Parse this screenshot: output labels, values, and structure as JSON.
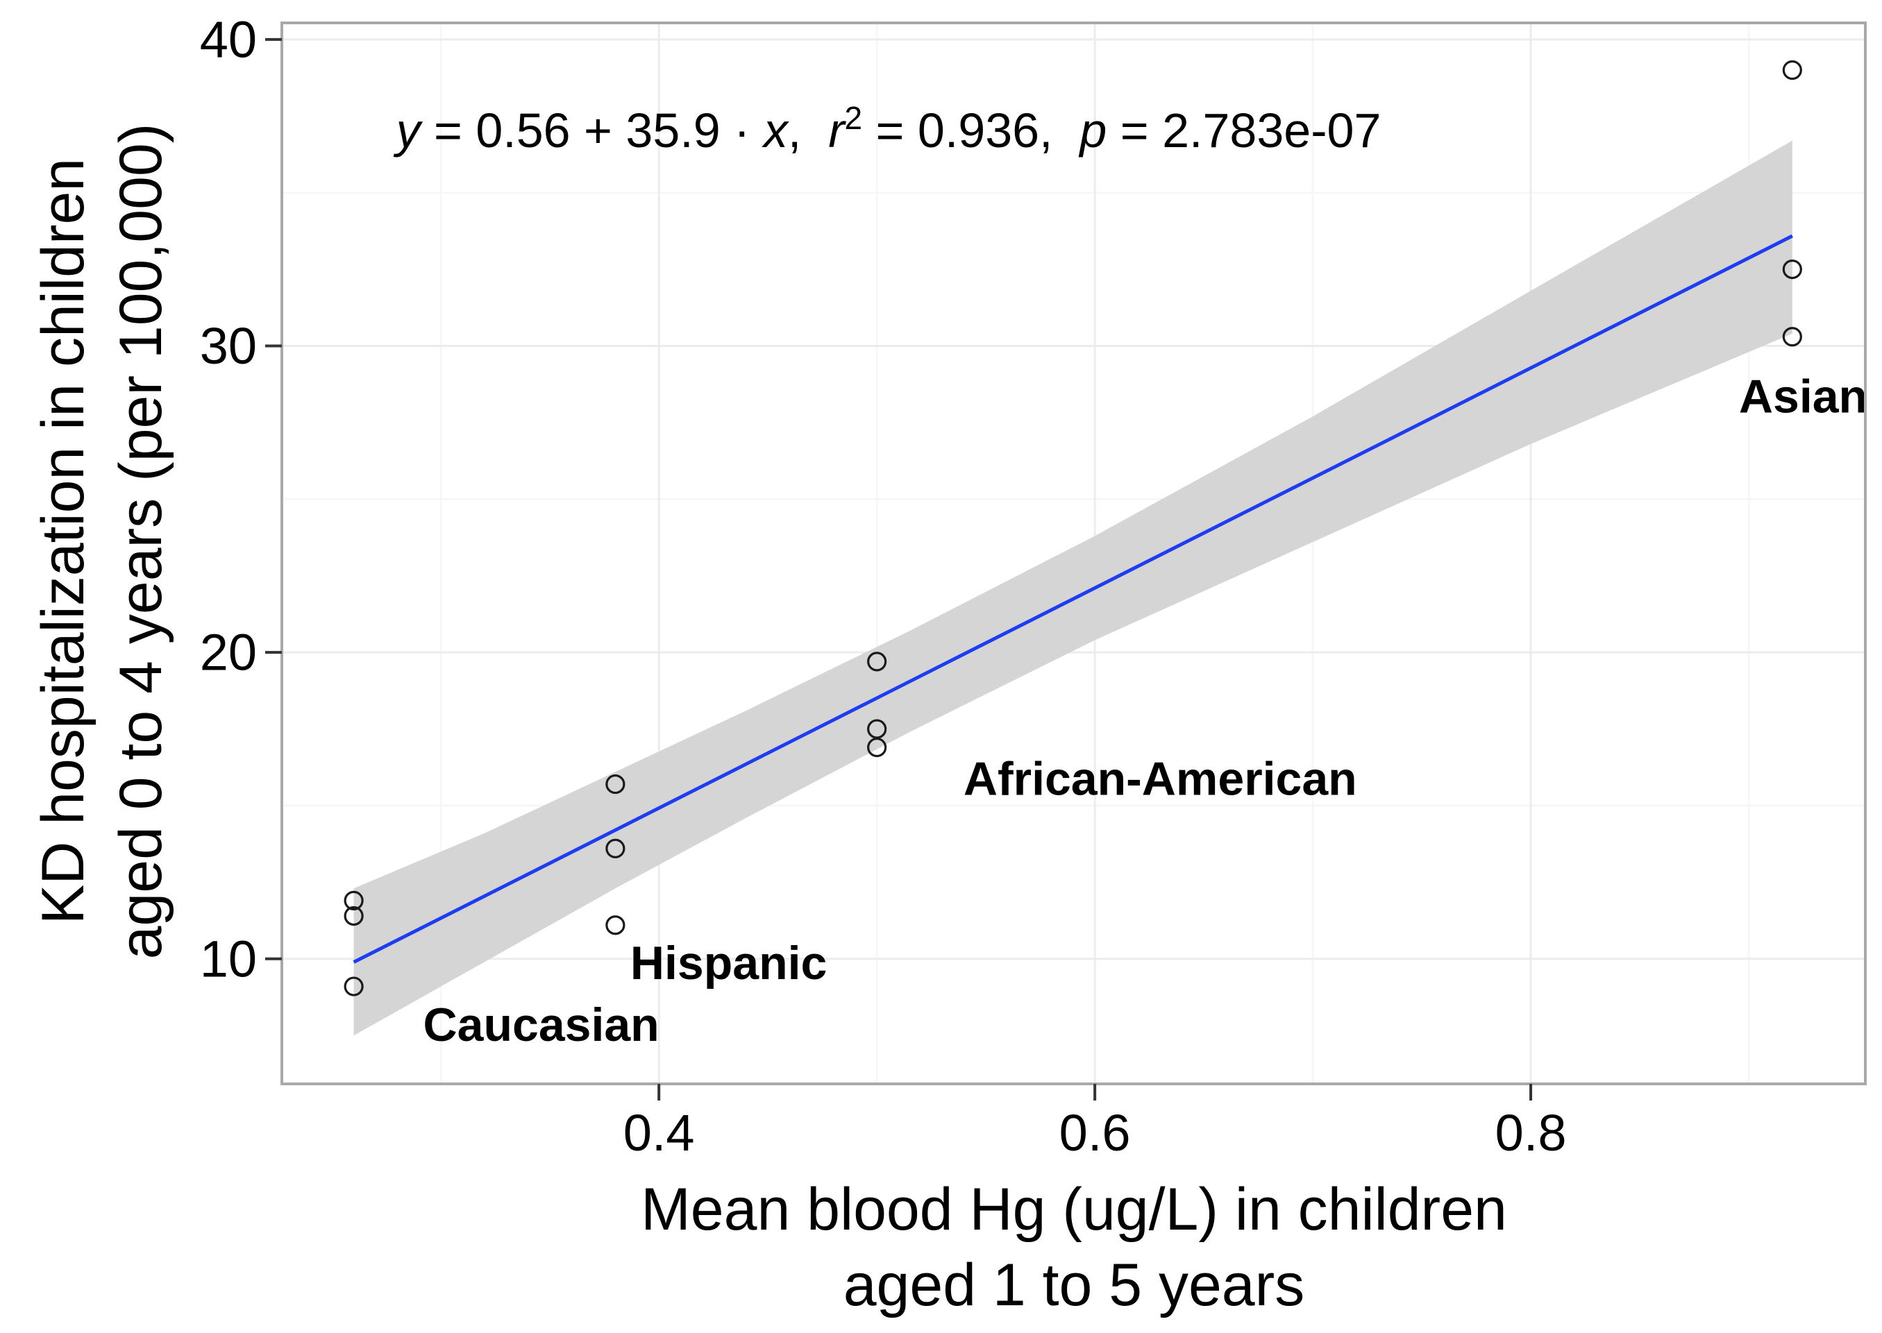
{
  "figure": {
    "x_axis": {
      "title_line1": "Mean blood Hg (ug/L) in children",
      "title_line2": "aged 1 to 5 years",
      "ticks": [
        0.4,
        0.6,
        0.8
      ],
      "tick_labels": [
        "0.4",
        "0.6",
        "0.8"
      ],
      "minor_gridlines": [
        0.3,
        0.5,
        0.7,
        0.9
      ],
      "range": [
        0.227,
        0.9535
      ]
    },
    "y_axis": {
      "title_line1": "KD hospitalization in children",
      "title_line2": "aged 0 to 4 years (per 100,000)",
      "ticks": [
        10,
        20,
        30,
        40
      ],
      "tick_labels": [
        "10",
        "20",
        "30",
        "40"
      ],
      "minor_gridlines": [
        15,
        25,
        35
      ],
      "range": [
        5.92,
        40.54
      ]
    },
    "equation": {
      "y": "y",
      "seg1": " = 0.56 + 35.9 · ",
      "x": "x",
      "seg2": ",  ",
      "r": "r",
      "sup": "2",
      "seg3": " = 0.936,  ",
      "p": "p",
      "seg4": " = 2.783e-07"
    }
  },
  "chart_data": {
    "type": "scatter",
    "title": "",
    "xlabel": "Mean blood Hg (ug/L) in children aged 1 to 5 years",
    "ylabel": "KD hospitalization in children aged 0 to 4 years (per 100,000)",
    "xlim": [
      0.227,
      0.9535
    ],
    "ylim": [
      5.92,
      40.54
    ],
    "grid": "on",
    "points": [
      {
        "group": "Caucasian",
        "x": 0.26,
        "y": 11.9
      },
      {
        "group": "Caucasian",
        "x": 0.26,
        "y": 11.4
      },
      {
        "group": "Caucasian",
        "x": 0.26,
        "y": 9.1
      },
      {
        "group": "Hispanic",
        "x": 0.38,
        "y": 15.7
      },
      {
        "group": "Hispanic",
        "x": 0.38,
        "y": 13.6
      },
      {
        "group": "Hispanic",
        "x": 0.38,
        "y": 11.1
      },
      {
        "group": "African-American",
        "x": 0.5,
        "y": 19.7
      },
      {
        "group": "African-American",
        "x": 0.5,
        "y": 17.5
      },
      {
        "group": "African-American",
        "x": 0.5,
        "y": 16.9
      },
      {
        "group": "Asian",
        "x": 0.92,
        "y": 39.0
      },
      {
        "group": "Asian",
        "x": 0.92,
        "y": 32.5
      },
      {
        "group": "Asian",
        "x": 0.92,
        "y": 30.3
      }
    ],
    "group_labels": [
      {
        "label": "Caucasian",
        "x": 0.346,
        "y": 7.85
      },
      {
        "label": "Hispanic",
        "x": 0.432,
        "y": 9.86
      },
      {
        "label": "African-American",
        "x": 0.63,
        "y": 15.87
      },
      {
        "label": "Asian",
        "x": 0.925,
        "y": 28.35
      }
    ],
    "regression": {
      "intercept": 0.56,
      "slope": 35.9,
      "r_squared": 0.936,
      "p_value": "2.783e-07",
      "x_start": 0.26,
      "x_end": 0.92
    },
    "ci_band": [
      {
        "x": 0.26,
        "lo": 7.5,
        "hi": 12.3
      },
      {
        "x": 0.32,
        "lo": 9.9,
        "hi": 14.1
      },
      {
        "x": 0.38,
        "lo": 12.3,
        "hi": 16.1
      },
      {
        "x": 0.44,
        "lo": 14.6,
        "hi": 18.1
      },
      {
        "x": 0.515,
        "lo": 17.4,
        "hi": 20.7
      },
      {
        "x": 0.6,
        "lo": 20.4,
        "hi": 23.8
      },
      {
        "x": 0.7,
        "lo": 23.6,
        "hi": 27.7
      },
      {
        "x": 0.8,
        "lo": 26.8,
        "hi": 31.8
      },
      {
        "x": 0.92,
        "lo": 30.4,
        "hi": 36.7
      }
    ],
    "colors": {
      "regression_line": "#1e3cf0",
      "confidence_band": "#d5d5d5",
      "point_stroke": "#1a1a1a",
      "plot_border": "#a9a9a9",
      "grid_major": "#ececec",
      "grid_minor": "#f6f6f6",
      "tick": "#333333",
      "text": "#000000"
    }
  }
}
